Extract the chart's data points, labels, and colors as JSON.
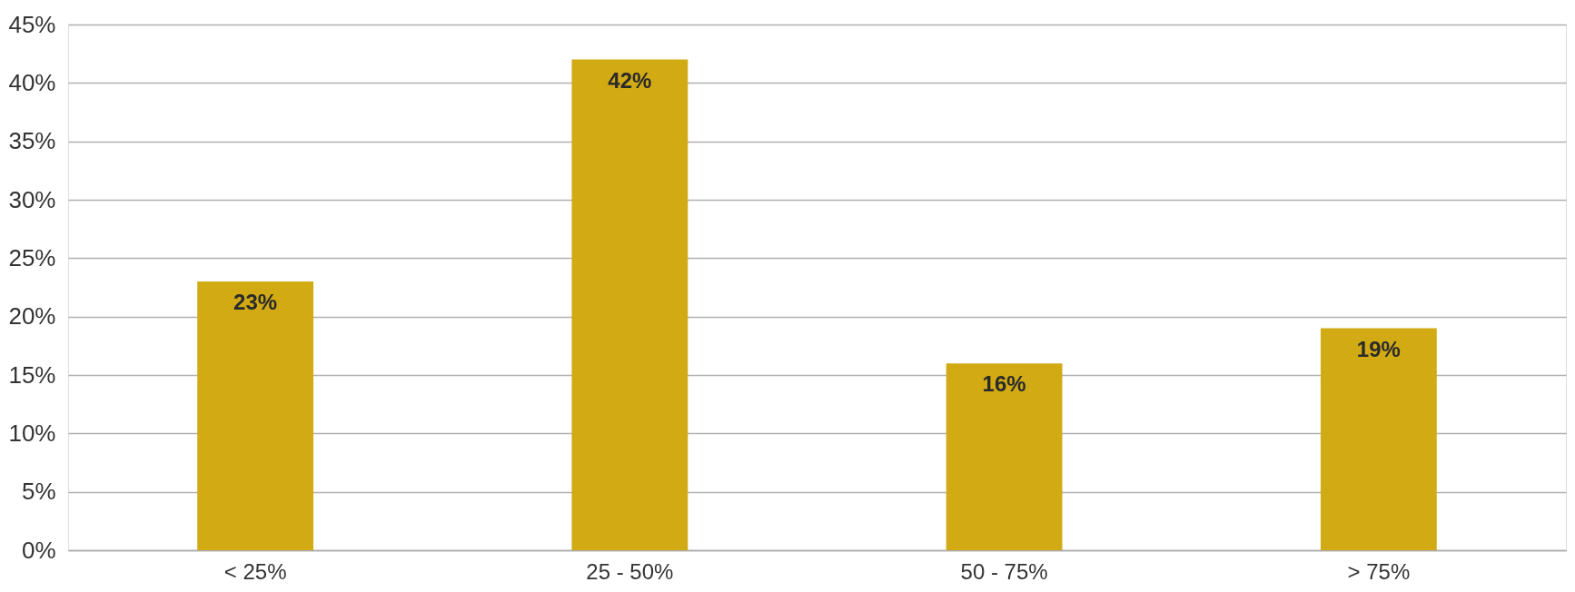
{
  "chart_data": {
    "type": "bar",
    "categories": [
      "< 25%",
      "25 - 50%",
      "50 - 75%",
      "> 75%"
    ],
    "values": [
      23,
      42,
      16,
      19
    ],
    "color": "#d1aa14",
    "ylim": [
      0,
      45
    ],
    "yticks": [
      {
        "value": 0,
        "label": "0%"
      },
      {
        "value": 5,
        "label": "5%"
      },
      {
        "value": 10,
        "label": "10%"
      },
      {
        "value": 15,
        "label": "15%"
      },
      {
        "value": 20,
        "label": "20%"
      },
      {
        "value": 25,
        "label": "25%"
      },
      {
        "value": 30,
        "label": "30%"
      },
      {
        "value": 35,
        "label": "35%"
      },
      {
        "value": 40,
        "label": "40%"
      },
      {
        "value": 45,
        "label": "45%"
      }
    ],
    "value_labels": [
      "23%",
      "42%",
      "16%",
      "19%"
    ],
    "grid": "y"
  }
}
